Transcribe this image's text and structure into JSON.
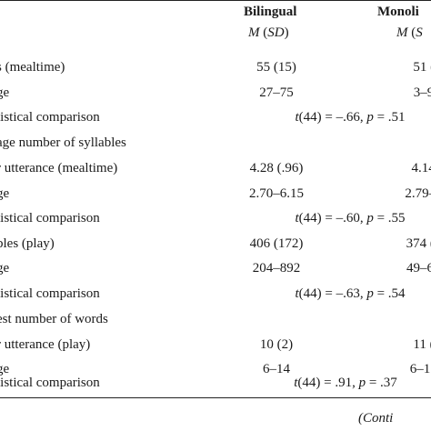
{
  "header": {
    "col1_title": "Bilingual",
    "col1_sub_m": "M",
    "col1_sub_sd": "SD",
    "col2_title": "Monoli",
    "col2_sub_m": "M",
    "col2_sub_sd": "S"
  },
  "rows": [
    {
      "label": "s (mealtime)",
      "c1": "55 (15)",
      "c2": "51 (2"
    },
    {
      "label": "ge",
      "c1": "27–75",
      "c2": "3–9"
    },
    {
      "label": "tistical comparison",
      "stat_t": "t",
      "stat": "(44) = –.66, ",
      "stat_p": "p",
      "stat_end": " = .51"
    },
    {
      "label": "age number of syllables"
    },
    {
      "label": "r utterance (mealtime)",
      "c1": "4.28 (.96)",
      "c2": "4.14 ("
    },
    {
      "label": "ge",
      "c1": "2.70–6.15",
      "c2": "2.79–6"
    },
    {
      "label": "tistical comparison",
      "stat_t": "t",
      "stat": "(44) = –.60, ",
      "stat_p": "p",
      "stat_end": " = .55"
    },
    {
      "label": "bles (play)",
      "c1": "406 (172)",
      "c2": "374 (1"
    },
    {
      "label": "ge",
      "c1": "204–892",
      "c2": "49–6"
    },
    {
      "label": "tistical comparison",
      "stat_t": "t",
      "stat": "(44) = –.63, ",
      "stat_p": "p",
      "stat_end": " = .54"
    },
    {
      "label": "est number of words"
    },
    {
      "label": "r utterance (play)",
      "c1": "10 (2)",
      "c2": "11 ("
    },
    {
      "label": "ge",
      "c1": "6–14",
      "c2": "6–1"
    },
    {
      "label": "tistical comparison",
      "stat_t": "t",
      "stat": "(44) = .91, ",
      "stat_p": "p",
      "stat_end": " = .37"
    }
  ],
  "footer": {
    "continued": "(Conti"
  }
}
